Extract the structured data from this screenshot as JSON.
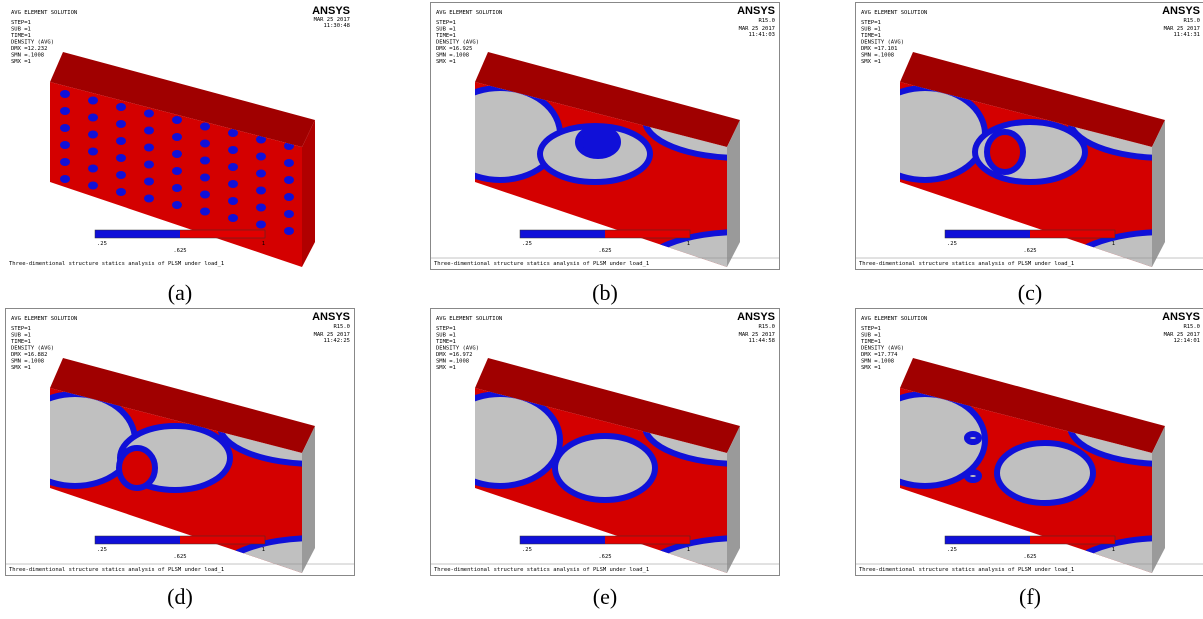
{
  "panels": [
    {
      "label": "(a)",
      "header": "AVG ELEMENT SOLUTION",
      "info": [
        "STEP=1",
        "SUB =1",
        "TIME=1",
        "DENSITY  (AVG)",
        "DMX =12.232",
        "SMN =.1008",
        "SMX =1"
      ],
      "brand": "ANSYS",
      "date": "MAR 25 2017",
      "time": "11:30:48",
      "legend": [
        ".25",
        ".625",
        "1"
      ],
      "caption": "Three-dimentional structure statics analysis of PLSM under load_1"
    },
    {
      "label": "(b)",
      "header": "AVG ELEMENT SOLUTION",
      "info": [
        "STEP=1",
        "SUB =1",
        "TIME=1",
        "DENSITY  (AVG)",
        "DMX =16.925",
        "SMN =.1008",
        "SMX =1"
      ],
      "brand": "ANSYS",
      "release": "R15.0",
      "date": "MAR 25 2017",
      "time": "11:41:03",
      "legend": [
        ".25",
        ".625",
        "1"
      ],
      "caption": "Three-dimentional structure statics analysis of PLSM under load_1"
    },
    {
      "label": "(c)",
      "header": "AVG ELEMENT SOLUTION",
      "info": [
        "STEP=1",
        "SUB =1",
        "TIME=1",
        "DENSITY  (AVG)",
        "DMX =17.101",
        "SMN =.1008",
        "SMX =1"
      ],
      "brand": "ANSYS",
      "release": "R15.0",
      "date": "MAR 25 2017",
      "time": "11:41:31",
      "legend": [
        ".25",
        ".625",
        "1"
      ],
      "caption": "Three-dimentional structure statics analysis of PLSM under load_1"
    },
    {
      "label": "(d)",
      "header": "AVG ELEMENT SOLUTION",
      "info": [
        "STEP=1",
        "SUB =1",
        "TIME=1",
        "DENSITY  (AVG)",
        "DMX =16.882",
        "SMN =.1008",
        "SMX =1"
      ],
      "brand": "ANSYS",
      "release": "R15.0",
      "date": "MAR 25 2017",
      "time": "11:42:25",
      "legend": [
        ".25",
        ".625",
        "1"
      ],
      "caption": "Three-dimentional structure statics analysis of PLSM under load_1"
    },
    {
      "label": "(e)",
      "header": "AVG ELEMENT SOLUTION",
      "info": [
        "STEP=1",
        "SUB =1",
        "TIME=1",
        "DENSITY  (AVG)",
        "DMX =16.972",
        "SMN =.1008",
        "SMX =1"
      ],
      "brand": "ANSYS",
      "release": "R15.0",
      "date": "MAR 25 2017",
      "time": "11:44:58",
      "legend": [
        ".25",
        ".625",
        "1"
      ],
      "caption": "Three-dimentional structure statics analysis of PLSM under load_1"
    },
    {
      "label": "(f)",
      "header": "AVG ELEMENT SOLUTION",
      "info": [
        "STEP=1",
        "SUB =1",
        "TIME=1",
        "DENSITY  (AVG)",
        "DMX =17.774",
        "SMN =.1008",
        "SMX =1"
      ],
      "brand": "ANSYS",
      "release": "R15.0",
      "date": "MAR 25 2017",
      "time": "12:14:01",
      "legend": [
        ".25",
        ".625",
        "1"
      ],
      "caption": "Three-dimentional structure statics analysis of PLSM under load_1"
    }
  ]
}
